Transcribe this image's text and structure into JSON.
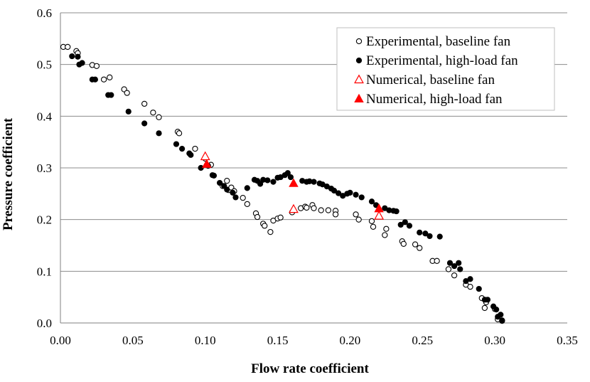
{
  "chart_data": {
    "type": "scatter",
    "title": "",
    "xlabel": "Flow rate coefficient",
    "ylabel": "Pressure coefficient",
    "xlim": [
      0,
      0.35
    ],
    "ylim": [
      0,
      0.6
    ],
    "x_ticks": [
      "0.00",
      "0.05",
      "0.10",
      "0.15",
      "0.20",
      "0.25",
      "0.30",
      "0.35"
    ],
    "y_ticks": [
      "0.0",
      "0.1",
      "0.2",
      "0.3",
      "0.4",
      "0.5",
      "0.6"
    ],
    "grid": "horizontal",
    "legend_position": "top-right",
    "series": [
      {
        "name": "Experimental, baseline fan",
        "marker": "open-circle",
        "color": "#000000",
        "points": [
          [
            0.002,
            0.534
          ],
          [
            0.005,
            0.534
          ],
          [
            0.011,
            0.526
          ],
          [
            0.012,
            0.522
          ],
          [
            0.022,
            0.499
          ],
          [
            0.025,
            0.497
          ],
          [
            0.03,
            0.471
          ],
          [
            0.034,
            0.475
          ],
          [
            0.044,
            0.452
          ],
          [
            0.046,
            0.445
          ],
          [
            0.058,
            0.424
          ],
          [
            0.064,
            0.407
          ],
          [
            0.068,
            0.398
          ],
          [
            0.081,
            0.37
          ],
          [
            0.082,
            0.367
          ],
          [
            0.093,
            0.337
          ],
          [
            0.1,
            0.318
          ],
          [
            0.104,
            0.306
          ],
          [
            0.112,
            0.265
          ],
          [
            0.115,
            0.275
          ],
          [
            0.116,
            0.257
          ],
          [
            0.118,
            0.262
          ],
          [
            0.12,
            0.255
          ],
          [
            0.126,
            0.242
          ],
          [
            0.129,
            0.23
          ],
          [
            0.135,
            0.212
          ],
          [
            0.136,
            0.205
          ],
          [
            0.14,
            0.192
          ],
          [
            0.141,
            0.188
          ],
          [
            0.145,
            0.176
          ],
          [
            0.147,
            0.198
          ],
          [
            0.15,
            0.202
          ],
          [
            0.152,
            0.204
          ],
          [
            0.16,
            0.214
          ],
          [
            0.166,
            0.222
          ],
          [
            0.169,
            0.225
          ],
          [
            0.17,
            0.223
          ],
          [
            0.174,
            0.228
          ],
          [
            0.175,
            0.222
          ],
          [
            0.18,
            0.218
          ],
          [
            0.185,
            0.218
          ],
          [
            0.19,
            0.217
          ],
          [
            0.19,
            0.21
          ],
          [
            0.204,
            0.21
          ],
          [
            0.206,
            0.2
          ],
          [
            0.215,
            0.197
          ],
          [
            0.216,
            0.186
          ],
          [
            0.224,
            0.17
          ],
          [
            0.225,
            0.182
          ],
          [
            0.236,
            0.158
          ],
          [
            0.237,
            0.153
          ],
          [
            0.245,
            0.152
          ],
          [
            0.248,
            0.145
          ],
          [
            0.257,
            0.12
          ],
          [
            0.26,
            0.12
          ],
          [
            0.268,
            0.104
          ],
          [
            0.272,
            0.092
          ],
          [
            0.28,
            0.074
          ],
          [
            0.283,
            0.07
          ],
          [
            0.291,
            0.048
          ],
          [
            0.294,
            0.04
          ],
          [
            0.293,
            0.029
          ],
          [
            0.3,
            0.027
          ],
          [
            0.302,
            0.007
          ],
          [
            0.305,
            0.004
          ]
        ]
      },
      {
        "name": "Experimental, high-load fan",
        "marker": "filled-circle",
        "color": "#000000",
        "points": [
          [
            0.008,
            0.516
          ],
          [
            0.012,
            0.515
          ],
          [
            0.013,
            0.5
          ],
          [
            0.015,
            0.503
          ],
          [
            0.022,
            0.471
          ],
          [
            0.024,
            0.471
          ],
          [
            0.033,
            0.441
          ],
          [
            0.035,
            0.441
          ],
          [
            0.047,
            0.409
          ],
          [
            0.058,
            0.386
          ],
          [
            0.068,
            0.367
          ],
          [
            0.08,
            0.346
          ],
          [
            0.084,
            0.337
          ],
          [
            0.089,
            0.328
          ],
          [
            0.09,
            0.325
          ],
          [
            0.097,
            0.3
          ],
          [
            0.102,
            0.304
          ],
          [
            0.105,
            0.286
          ],
          [
            0.106,
            0.285
          ],
          [
            0.11,
            0.271
          ],
          [
            0.113,
            0.265
          ],
          [
            0.115,
            0.258
          ],
          [
            0.119,
            0.252
          ],
          [
            0.121,
            0.243
          ],
          [
            0.129,
            0.261
          ],
          [
            0.134,
            0.277
          ],
          [
            0.136,
            0.275
          ],
          [
            0.138,
            0.269
          ],
          [
            0.14,
            0.277
          ],
          [
            0.143,
            0.276
          ],
          [
            0.147,
            0.273
          ],
          [
            0.15,
            0.281
          ],
          [
            0.152,
            0.282
          ],
          [
            0.155,
            0.286
          ],
          [
            0.157,
            0.29
          ],
          [
            0.159,
            0.282
          ],
          [
            0.167,
            0.275
          ],
          [
            0.17,
            0.273
          ],
          [
            0.172,
            0.274
          ],
          [
            0.175,
            0.273
          ],
          [
            0.179,
            0.27
          ],
          [
            0.181,
            0.268
          ],
          [
            0.184,
            0.264
          ],
          [
            0.187,
            0.26
          ],
          [
            0.189,
            0.256
          ],
          [
            0.192,
            0.251
          ],
          [
            0.195,
            0.246
          ],
          [
            0.198,
            0.25
          ],
          [
            0.2,
            0.252
          ],
          [
            0.204,
            0.248
          ],
          [
            0.208,
            0.243
          ],
          [
            0.215,
            0.235
          ],
          [
            0.218,
            0.228
          ],
          [
            0.224,
            0.222
          ],
          [
            0.227,
            0.218
          ],
          [
            0.23,
            0.217
          ],
          [
            0.232,
            0.216
          ],
          [
            0.235,
            0.19
          ],
          [
            0.238,
            0.195
          ],
          [
            0.241,
            0.188
          ],
          [
            0.248,
            0.175
          ],
          [
            0.252,
            0.173
          ],
          [
            0.255,
            0.168
          ],
          [
            0.262,
            0.167
          ],
          [
            0.269,
            0.116
          ],
          [
            0.272,
            0.11
          ],
          [
            0.275,
            0.116
          ],
          [
            0.276,
            0.104
          ],
          [
            0.28,
            0.081
          ],
          [
            0.283,
            0.085
          ],
          [
            0.289,
            0.066
          ],
          [
            0.293,
            0.045
          ],
          [
            0.295,
            0.045
          ],
          [
            0.299,
            0.032
          ],
          [
            0.301,
            0.026
          ],
          [
            0.302,
            0.012
          ],
          [
            0.304,
            0.016
          ],
          [
            0.305,
            0.005
          ]
        ]
      },
      {
        "name": "Numerical, baseline fan",
        "marker": "open-triangle",
        "color": "#ff0000",
        "points": [
          [
            0.1,
            0.322
          ],
          [
            0.161,
            0.22
          ],
          [
            0.22,
            0.207
          ]
        ]
      },
      {
        "name": "Numerical, high-load fan",
        "marker": "filled-triangle",
        "color": "#ff0000",
        "points": [
          [
            0.101,
            0.307
          ],
          [
            0.161,
            0.27
          ],
          [
            0.22,
            0.221
          ]
        ]
      }
    ]
  }
}
